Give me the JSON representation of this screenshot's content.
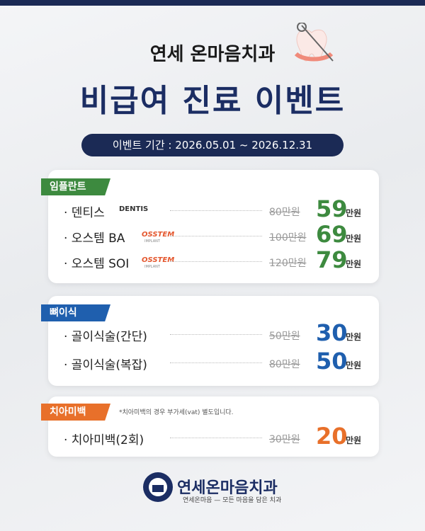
{
  "header": {
    "clinic": "연세 온마음치과",
    "title": "비급여 진료 이벤트",
    "period": "이벤트 기간 : 2026.05.01 ~ 2026.12.31"
  },
  "sections": [
    {
      "tag": "임플란트",
      "items": [
        {
          "name": "· 덴티스",
          "brand": "DENTIS",
          "old_price": "80만원",
          "price": "59",
          "unit": "만원"
        },
        {
          "name": "· 오스템 BA",
          "brand": "OSSTEM",
          "brand_sub": "IMPLANT",
          "old_price": "100만원",
          "price": "69",
          "unit": "만원"
        },
        {
          "name": "· 오스템 SOI",
          "brand": "OSSTEM",
          "brand_sub": "IMPLANT",
          "old_price": "120만원",
          "price": "79",
          "unit": "만원"
        }
      ]
    },
    {
      "tag": "뼈이식",
      "items": [
        {
          "name": "· 골이식술(간단)",
          "old_price": "50만원",
          "price": "30",
          "unit": "만원"
        },
        {
          "name": "· 골이식술(복잡)",
          "old_price": "80만원",
          "price": "50",
          "unit": "만원"
        }
      ]
    },
    {
      "tag": "치아미백",
      "note": "*치아미백의 경우 부가세(vat) 별도입니다.",
      "items": [
        {
          "name": "· 치아미백(2회)",
          "old_price": "30만원",
          "price": "20",
          "unit": "만원"
        }
      ]
    }
  ],
  "footer": {
    "name": "연세온마음치과",
    "slogan": "연세온마음 — 모든 마음을 담은 치과"
  }
}
